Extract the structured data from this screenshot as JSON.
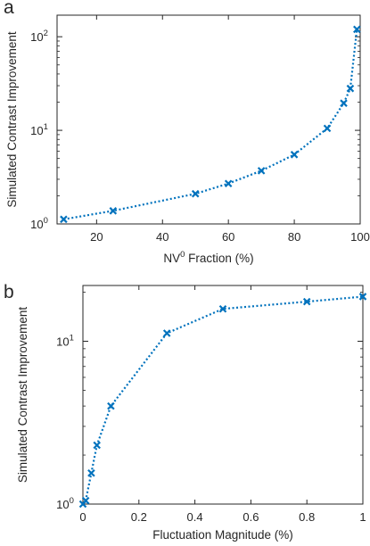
{
  "chart_data": [
    {
      "type": "line",
      "panel_label": "a",
      "xlabel_base": "NV",
      "xlabel_sup": "0",
      "xlabel_rest": " Fraction (%)",
      "ylabel": "Simulated Contrast Improvement",
      "xlim": [
        8,
        100
      ],
      "ylim": [
        1,
        170
      ],
      "yscale": "log",
      "grid": false,
      "color": "#0072BD",
      "line_style": "dotted",
      "marker": "x",
      "x_ticks": [
        20,
        40,
        60,
        80,
        100
      ],
      "x_tick_labels": [
        "20",
        "40",
        "60",
        "80",
        "100"
      ],
      "y_ticks": [
        1,
        10,
        100
      ],
      "y_tick_bases": [
        "10",
        "10",
        "10"
      ],
      "y_tick_exps": [
        "0",
        "1",
        "2"
      ],
      "x": [
        10,
        25,
        50,
        60,
        70,
        80,
        90,
        95,
        97,
        99
      ],
      "y": [
        1.12,
        1.38,
        2.1,
        2.7,
        3.7,
        5.5,
        10.5,
        19.5,
        28,
        120
      ]
    },
    {
      "type": "line",
      "panel_label": "b",
      "xlabel": "Fluctuation Magnitude (%)",
      "ylabel": "Simulated Contrast Improvement",
      "xlim": [
        0,
        1
      ],
      "ylim": [
        1,
        22
      ],
      "yscale": "log",
      "grid": false,
      "color": "#0072BD",
      "line_style": "dotted",
      "marker": "x",
      "x_ticks": [
        0,
        0.2,
        0.4,
        0.6,
        0.8,
        1
      ],
      "x_tick_labels": [
        "0",
        "0.2",
        "0.4",
        "0.6",
        "0.8",
        "1"
      ],
      "y_ticks": [
        1,
        10
      ],
      "y_tick_bases": [
        "10",
        "10"
      ],
      "y_tick_exps": [
        "0",
        "1"
      ],
      "x": [
        0,
        0.01,
        0.03,
        0.05,
        0.1,
        0.3,
        0.5,
        0.8,
        1.0
      ],
      "y": [
        1.0,
        1.05,
        1.55,
        2.3,
        4.0,
        11.2,
        15.8,
        17.5,
        18.8
      ]
    }
  ]
}
